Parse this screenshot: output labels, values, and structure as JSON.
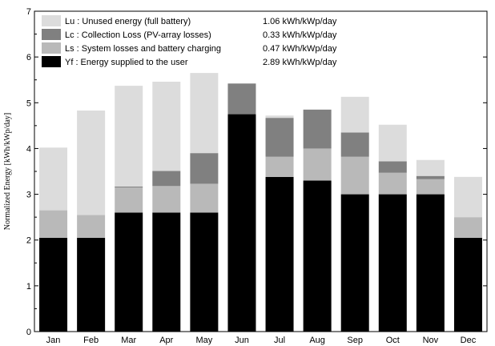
{
  "chart_data": {
    "type": "bar",
    "stacked": true,
    "ylabel": "Normalized Energy [kWh/kWp/day]",
    "ylim": [
      0,
      7
    ],
    "yticks": [
      0,
      1,
      2,
      3,
      4,
      5,
      6,
      7
    ],
    "grid": false,
    "legend_position": "top-left",
    "categories": [
      "Jan",
      "Feb",
      "Mar",
      "Apr",
      "May",
      "Jun",
      "Jul",
      "Aug",
      "Sep",
      "Oct",
      "Nov",
      "Dec"
    ],
    "series": [
      {
        "key": "Yf",
        "name": "Yf : Energy supplied to the user",
        "value_label": "2.89 kWh/kWp/day",
        "color": "#000000",
        "values": [
          2.05,
          2.05,
          2.6,
          2.6,
          2.6,
          4.75,
          3.38,
          3.3,
          3.0,
          3.0,
          3.0,
          2.05
        ]
      },
      {
        "key": "Ls",
        "name": "Ls : System losses and battery charging",
        "value_label": "0.47 kWh/kWp/day",
        "color": "#b9b9b9",
        "values": [
          0.6,
          0.5,
          0.55,
          0.58,
          0.63,
          0.0,
          0.44,
          0.7,
          0.82,
          0.47,
          0.33,
          0.45
        ]
      },
      {
        "key": "Lc",
        "name": "Lc : Collection Loss (PV-array losses)",
        "value_label": "0.33 kWh/kWp/day",
        "color": "#808080",
        "values": [
          0.0,
          0.0,
          0.02,
          0.33,
          0.67,
          0.67,
          0.85,
          0.85,
          0.53,
          0.25,
          0.07,
          0.0
        ]
      },
      {
        "key": "Lu",
        "name": "Lu : Unused energy (full battery)",
        "value_label": "1.06 kWh/kWp/day",
        "color": "#dcdcdc",
        "values": [
          1.37,
          2.28,
          2.2,
          1.95,
          1.75,
          0.0,
          0.05,
          0.0,
          0.78,
          0.8,
          0.35,
          0.88
        ]
      }
    ],
    "legend_order": [
      "Lu",
      "Lc",
      "Ls",
      "Yf"
    ]
  }
}
